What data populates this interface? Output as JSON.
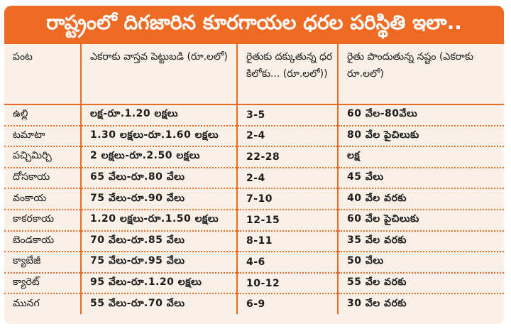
{
  "title": "రాష్ట్రంలో దిగజారిన కూరగాయల ధరల పరిస్థితి ఇలా..",
  "table": {
    "headers": [
      "పంట",
      "ఎకరాకు వాస్తవ పెట్టుబడి (రూ.లలో)",
      "రైతుకు దక్కుతున్న ధర కిలోకు... (రూ.లలో))",
      "రైతు పొందుతున్న నష్టం (ఎకరాకు రూ.లలో)"
    ],
    "rows": [
      [
        "ఉల్లి",
        "లక్ష-రూ.1.20 లక్షలు",
        "3-5",
        "60 వేల-80వేలు"
      ],
      [
        "టమాటా",
        "1.30 లక్షలు-రూ.1.60 లక్షలు",
        "2-4",
        "80 వేల పైచిలుకు"
      ],
      [
        "పచ్చిమిర్చి",
        "2 లక్షలు-రూ.2.50 లక్షలు",
        "22-28",
        "లక్ష"
      ],
      [
        "దోసకాయ",
        "65 వేలు-రూ.80 వేలు",
        "2-4",
        "45 వేలు"
      ],
      [
        "వంకాయ",
        "75 వేలు-రూ.90 వేలు",
        "7-10",
        "40 వేల వరకు"
      ],
      [
        "కాకరకాయ",
        "1.20 లక్షలు-రూ.1.50 లక్షలు",
        "12-15",
        "60 వేల పైచిలుకు"
      ],
      [
        "బెండకాయ",
        "70 వేలు-రూ.85 వేలు",
        "8-11",
        "35 వేల వరకు"
      ],
      [
        "క్యాబేజీ",
        "75 వేలు-రూ.95 వేలు",
        "4-6",
        "50 వేలు"
      ],
      [
        "క్యారెట్",
        "95 వేలు-రూ.1.20 లక్షలు",
        "10-12",
        "55 వేల వరకు"
      ],
      [
        "మునగ",
        "55 వేలు-రూ.70 వేలు",
        "6-9",
        "30 వేల వరకు"
      ]
    ]
  },
  "colors": {
    "banner": "#ef6a22",
    "background": "#faf0e8",
    "grid": "#e46a26"
  }
}
